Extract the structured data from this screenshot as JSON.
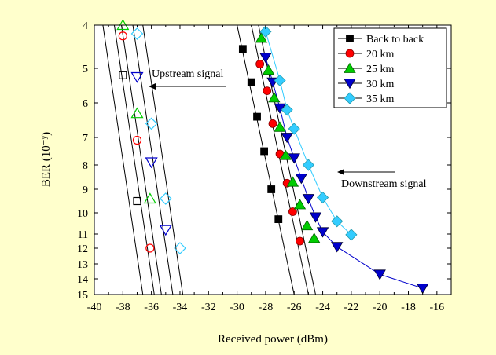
{
  "chart_data": {
    "type": "scatter",
    "xlabel": "Received power (dBm)",
    "ylabel": "BER (10⁻ʸ)",
    "xlim": [
      -40,
      -15
    ],
    "ylim": [
      4,
      15
    ],
    "y_scale": "nonlinear (log-like BER axis; exponent tick labels)",
    "xticks": [
      -40,
      -38,
      -36,
      -34,
      -32,
      -30,
      -28,
      -26,
      -24,
      -22,
      -20,
      -18,
      -16
    ],
    "yticks": [
      4,
      5,
      6,
      7,
      8,
      9,
      10,
      11,
      12,
      13,
      14,
      15
    ],
    "y_tick_labels": [
      "4",
      "5",
      "6",
      "7",
      "8",
      "9",
      "10",
      "11",
      "12",
      "13",
      "14",
      "15"
    ],
    "x_tick_labels": [
      "-40",
      "-38",
      "-36",
      "-34",
      "-32",
      "-30",
      "-28",
      "-26",
      "-24",
      "-22",
      "-20",
      "-18",
      "-16"
    ],
    "legend_position": "top-right",
    "annotations": {
      "upstream": "Upstream signal",
      "downstream": "Downstream signal"
    },
    "series": [
      {
        "name": "Back to back",
        "color": "#000000",
        "marker": "square",
        "upstream": [
          [
            -38.0,
            5.2
          ],
          [
            -37.0,
            9.5
          ]
        ],
        "upstream_fit": [
          [
            -39.4,
            4.0
          ],
          [
            -36.6,
            15.0
          ]
        ],
        "downstream": [
          [
            -29.6,
            4.55
          ],
          [
            -29.0,
            5.4
          ],
          [
            -28.6,
            6.4
          ],
          [
            -28.1,
            7.5
          ],
          [
            -27.6,
            9.0
          ],
          [
            -27.1,
            10.3
          ]
        ],
        "downstream_fit": [
          [
            -30.0,
            4.0
          ],
          [
            -26.0,
            15.0
          ]
        ],
        "downstream_line": "fit"
      },
      {
        "name": "20 km",
        "color": "#ff0000",
        "marker": "circle",
        "upstream": [
          [
            -38.0,
            4.25
          ],
          [
            -37.0,
            7.1
          ],
          [
            -36.1,
            12.0
          ]
        ],
        "upstream_fit": [
          [
            -38.6,
            4.0
          ],
          [
            -35.8,
            15.0
          ]
        ],
        "downstream": [
          [
            -28.4,
            4.9
          ],
          [
            -27.9,
            5.65
          ],
          [
            -27.5,
            6.6
          ],
          [
            -27.0,
            7.6
          ],
          [
            -26.5,
            8.75
          ],
          [
            -26.1,
            9.95
          ],
          [
            -25.6,
            11.5
          ]
        ],
        "downstream_fit": [
          [
            -29.0,
            4.0
          ],
          [
            -25.0,
            15.0
          ]
        ],
        "downstream_line": "fit"
      },
      {
        "name": "25 km",
        "color": "#00cc00",
        "marker": "triangle-up",
        "upstream": [
          [
            -38.0,
            4.0
          ],
          [
            -37.0,
            6.3
          ],
          [
            -36.1,
            9.4
          ]
        ],
        "upstream_fit": [
          [
            -38.1,
            4.0
          ],
          [
            -35.3,
            15.0
          ]
        ],
        "downstream": [
          [
            -28.3,
            4.3
          ],
          [
            -27.8,
            5.05
          ],
          [
            -27.4,
            5.85
          ],
          [
            -27.0,
            6.7
          ],
          [
            -26.6,
            7.65
          ],
          [
            -26.1,
            8.7
          ],
          [
            -25.6,
            9.65
          ],
          [
            -25.1,
            10.6
          ],
          [
            -24.6,
            11.3
          ]
        ],
        "downstream_fit": [
          [
            -28.5,
            4.0
          ],
          [
            -24.5,
            15.0
          ]
        ],
        "downstream_line": "fit"
      },
      {
        "name": "30 km",
        "color": "#0000cc",
        "marker": "triangle-down",
        "upstream": [
          [
            -37.0,
            5.25
          ],
          [
            -36.0,
            7.9
          ],
          [
            -35.0,
            10.8
          ]
        ],
        "upstream_fit": [
          [
            -37.3,
            4.0
          ],
          [
            -34.5,
            15.0
          ]
        ],
        "downstream": [
          [
            -28.0,
            4.75
          ],
          [
            -27.5,
            5.4
          ],
          [
            -27.0,
            6.15
          ],
          [
            -26.5,
            7.0
          ],
          [
            -26.0,
            7.75
          ],
          [
            -25.5,
            8.55
          ],
          [
            -25.0,
            9.4
          ],
          [
            -24.5,
            10.2
          ],
          [
            -24.0,
            10.9
          ],
          [
            -23.0,
            11.9
          ],
          [
            -20.0,
            13.7
          ],
          [
            -17.0,
            14.6
          ]
        ],
        "downstream_line": "connect"
      },
      {
        "name": "35 km",
        "color": "#33ccff",
        "marker": "diamond",
        "upstream": [
          [
            -37.0,
            4.2
          ],
          [
            -36.0,
            6.6
          ],
          [
            -35.0,
            9.4
          ],
          [
            -34.0,
            12.0
          ]
        ],
        "upstream_fit": [
          [
            -36.6,
            4.0
          ],
          [
            -33.8,
            15.0
          ]
        ],
        "downstream": [
          [
            -28.0,
            4.15
          ],
          [
            -27.0,
            5.35
          ],
          [
            -26.5,
            6.2
          ],
          [
            -26.0,
            6.75
          ],
          [
            -25.0,
            8.0
          ],
          [
            -24.0,
            9.35
          ],
          [
            -23.0,
            10.4
          ],
          [
            -22.0,
            11.05
          ]
        ],
        "downstream_line": "connect"
      }
    ]
  }
}
